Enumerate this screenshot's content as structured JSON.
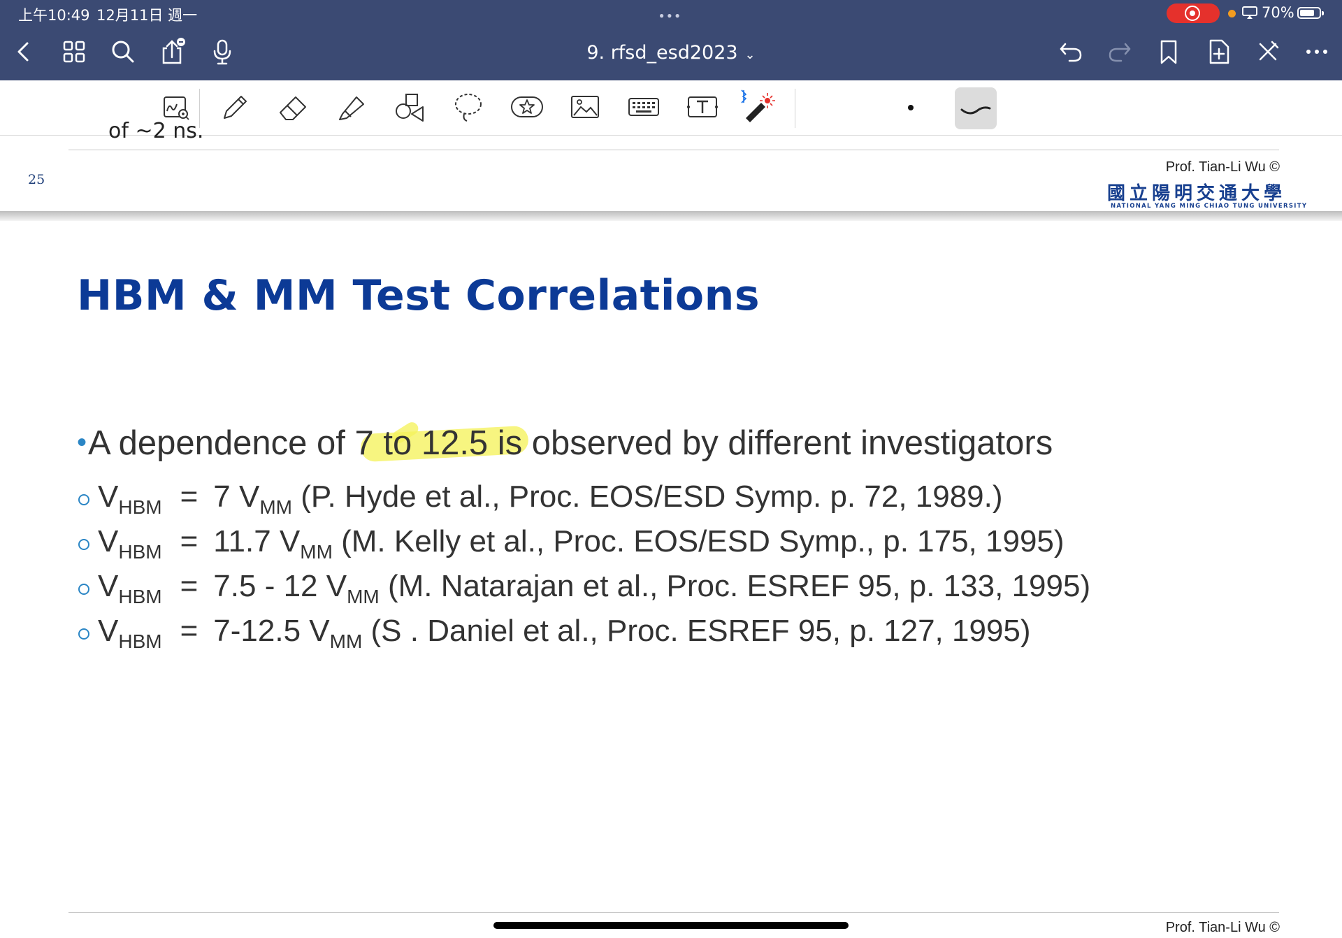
{
  "status_bar": {
    "time": "上午10:49",
    "date": "12月11日 週一",
    "battery": "70%",
    "battery_level": 0.7
  },
  "nav": {
    "doc_title": "9. rfsd_esd2023",
    "icons": [
      "back-icon",
      "thumbnails-icon",
      "search-icon",
      "share-icon",
      "microphone-icon",
      "undo-icon",
      "redo-icon",
      "bookmark-icon",
      "add-page-icon",
      "close-tools-icon",
      "more-icon"
    ]
  },
  "toolbar": {
    "tools": [
      "zoom-writing-icon",
      "pen-icon",
      "eraser-icon",
      "highlighter-icon",
      "shapes-icon",
      "lasso-icon",
      "sticker-icon",
      "image-icon",
      "keyboard-icon",
      "text-box-icon",
      "laser-pointer-icon"
    ],
    "selected_stroke": "curve"
  },
  "prev_page": {
    "partial_text": "of ~2 ns.",
    "page_number": "25",
    "credit": "Prof. Tian-Li Wu ©",
    "university_cn": "國立陽明交通大學",
    "university_en": "NATIONAL YANG MING CHIAO TUNG UNIVERSITY"
  },
  "slide": {
    "title": "HBM & MM Test Correlations",
    "main_bullet": {
      "before": "A dependence of ",
      "highlighted": "7 to 12.5",
      "after": " is observed by different investigators"
    },
    "items": [
      {
        "v": "V",
        "sub1": "HBM",
        "eq": "=",
        "value": "7 V",
        "sub2": "MM",
        "ref": " (P. Hyde et al.,  Proc. EOS/ESD Symp.  p. 72, 1989.)"
      },
      {
        "v": "V",
        "sub1": "HBM",
        "eq": "=",
        "value": "11.7 V",
        "sub2": "MM",
        "ref": " (M. Kelly et al.,  Proc. EOS/ESD Symp., p. 175, 1995)"
      },
      {
        "v": "V",
        "sub1": "HBM",
        "eq": "=",
        "value": "7.5 - 12 V",
        "sub2": "MM",
        "ref": " (M. Natarajan et al.,  Proc. ESREF 95,  p. 133, 1995)"
      },
      {
        "v": "V",
        "sub1": "HBM",
        "eq": "=",
        "value": "7-12.5 V",
        "sub2": "MM",
        "ref": " (S . Daniel et al.,  Proc. ESREF 95,  p. 127, 1995)"
      }
    ],
    "footer_credit": "Prof. Tian-Li Wu ©"
  },
  "colors": {
    "nav_bg": "#3b4a73",
    "title_blue": "#0c3a96",
    "bullet_blue": "#2b86c5",
    "highlight": "#f5f25c",
    "record": "#e5312c"
  }
}
